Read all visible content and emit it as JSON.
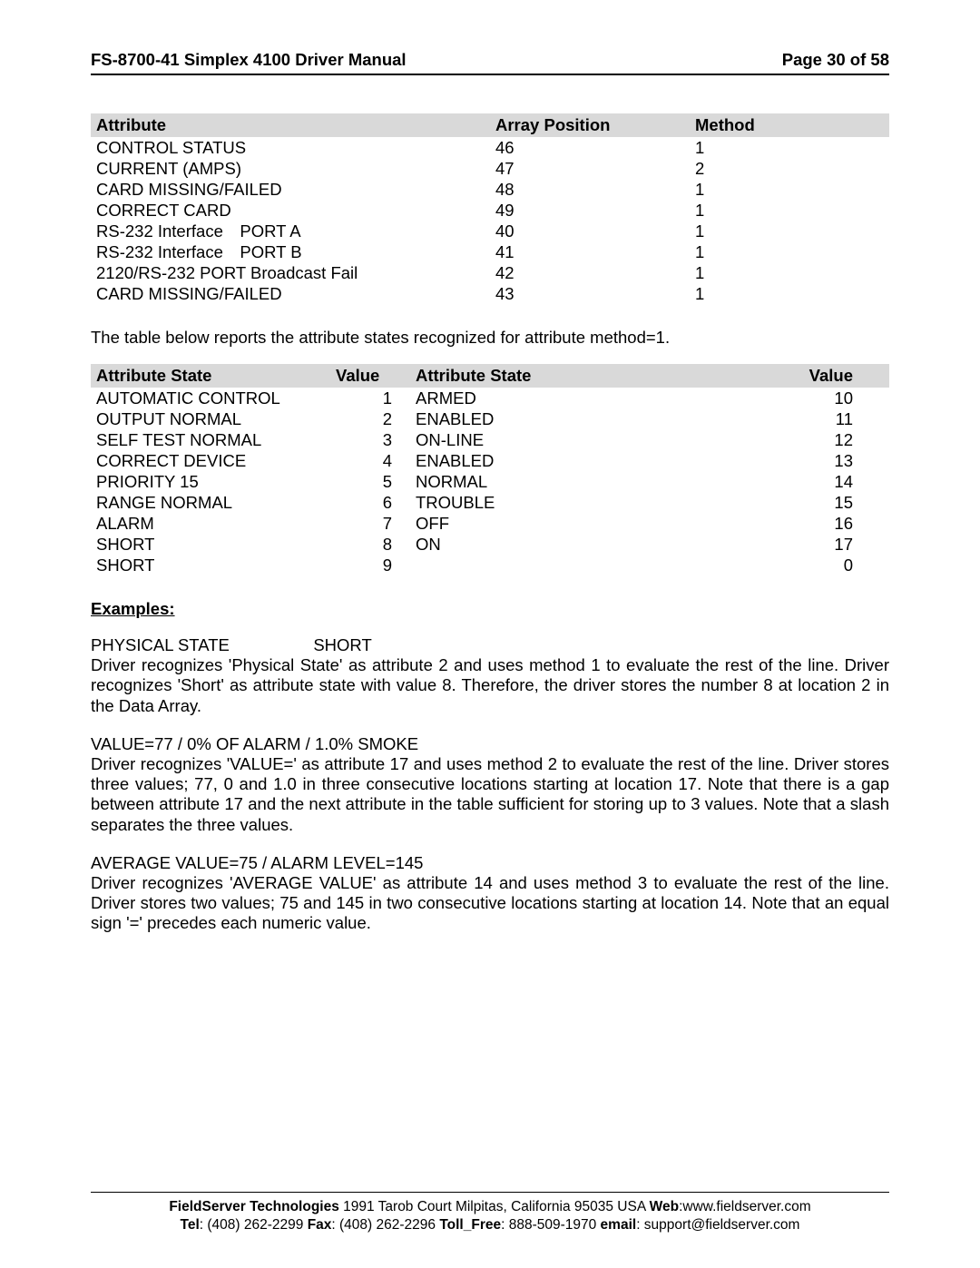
{
  "header": {
    "title": "FS-8700-41 Simplex 4100 Driver Manual",
    "page": "Page 30 of 58"
  },
  "table1": {
    "columns": [
      "Attribute",
      "Array Position",
      "Method"
    ],
    "rows": [
      [
        "CONTROL STATUS",
        "46",
        "1"
      ],
      [
        "CURRENT (AMPS)",
        "47",
        "2"
      ],
      [
        "CARD MISSING/FAILED",
        "48",
        "1"
      ],
      [
        "CORRECT CARD",
        "49",
        "1"
      ],
      [
        "RS-232 Interface PORT A",
        "40",
        "1"
      ],
      [
        "RS-232 Interface PORT B",
        "41",
        "1"
      ],
      [
        "2120/RS-232  PORT Broadcast Fail",
        "42",
        "1"
      ],
      [
        "CARD MISSING/FAILED",
        "43",
        "1"
      ]
    ]
  },
  "intro_text": "The table below reports the attribute states recognized for attribute method=1.",
  "table2": {
    "columns": [
      "Attribute State",
      "Value",
      "Attribute State",
      "Value"
    ],
    "rows": [
      [
        "AUTOMATIC CONTROL",
        "1",
        "ARMED",
        "10"
      ],
      [
        "OUTPUT NORMAL",
        "2",
        "ENABLED",
        "11"
      ],
      [
        "SELF TEST NORMAL",
        "3",
        "ON-LINE",
        "12"
      ],
      [
        "CORRECT DEVICE",
        "4",
        "ENABLED",
        "13"
      ],
      [
        "PRIORITY 15",
        "5",
        "NORMAL",
        "14"
      ],
      [
        "RANGE NORMAL",
        "6",
        "TROUBLE",
        "15"
      ],
      [
        "ALARM",
        "7",
        "OFF",
        "16"
      ],
      [
        "SHORT",
        "8",
        "ON",
        "17"
      ],
      [
        "SHORT",
        "9",
        "",
        "0"
      ]
    ]
  },
  "examples_heading": "Examples:",
  "examples": [
    {
      "title": "PHYSICAL STATE     SHORT",
      "body": "Driver recognizes 'Physical State' as attribute 2 and uses method 1 to evaluate the rest of the line. Driver recognizes 'Short' as attribute state with value 8. Therefore, the driver stores the number 8 at location 2 in the Data Array."
    },
    {
      "title": "VALUE=77 / 0% OF ALARM / 1.0% SMOKE",
      "body": "Driver recognizes 'VALUE=' as attribute 17 and uses method 2 to evaluate the rest of the line. Driver stores three values; 77, 0 and 1.0 in three consecutive locations starting at location 17.  Note that there is a gap between attribute 17 and the next attribute in the table sufficient for storing up to 3 values. Note that a slash separates the three values."
    },
    {
      "title": "AVERAGE VALUE=75  / ALARM LEVEL=145",
      "body": "Driver recognizes 'AVERAGE VALUE' as attribute 14 and uses method 3 to evaluate the rest of the line. Driver stores two values; 75 and 145 in two consecutive locations starting at location 14. Note that an equal sign '=' precedes each numeric value."
    }
  ],
  "footer": {
    "line1_company": "FieldServer Technologies",
    "line1_address": " 1991 Tarob Court Milpitas, California 95035 USA  ",
    "line1_web_label": "Web",
    "line1_web_value": ":www.fieldserver.com",
    "line2_tel_label": "Tel",
    "line2_tel_value": ": (408) 262-2299   ",
    "line2_fax_label": "Fax",
    "line2_fax_value": ": (408) 262-2296   ",
    "line2_tollfree_label": "Toll_Free",
    "line2_tollfree_value": ": 888-509-1970   ",
    "line2_email_label": "email",
    "line2_email_value": ": support@fieldserver.com"
  }
}
